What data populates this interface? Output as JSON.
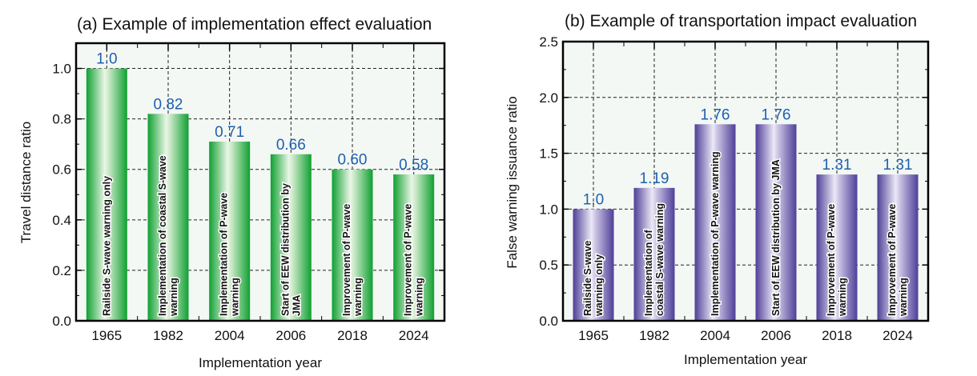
{
  "chart_data": [
    {
      "type": "bar",
      "title": "(a) Example of implementation effect evaluation",
      "xlabel": "Implementation year",
      "ylabel": "Travel distance ratio",
      "categories": [
        "1965",
        "1982",
        "2004",
        "2006",
        "2018",
        "2024"
      ],
      "values": [
        1.0,
        0.82,
        0.71,
        0.66,
        0.6,
        0.58
      ],
      "value_labels": [
        "1.0",
        "0.82",
        "0.71",
        "0.66",
        "0.60",
        "0.58"
      ],
      "bar_labels": [
        [
          "Railside S-wave warning only"
        ],
        [
          "Implementation of coastal S-wave",
          "warning"
        ],
        [
          "Implementation of P-wave",
          "warning"
        ],
        [
          "Start of EEW distribution by",
          "JMA"
        ],
        [
          "Improvement of P-wave",
          "warning"
        ],
        [
          "Improvement of P-wave",
          "warning"
        ]
      ],
      "ylim": [
        0,
        1.1
      ],
      "yticks": [
        0.0,
        0.2,
        0.4,
        0.6,
        0.8,
        1.0
      ],
      "ytick_labels": [
        "0.0",
        "0.2",
        "0.4",
        "0.6",
        "0.8",
        "1.0"
      ],
      "grid": true,
      "bar_color": "#1aa33a",
      "background": "#f3f8f4"
    },
    {
      "type": "bar",
      "title": "(b) Example of transportation impact evaluation",
      "xlabel": "Implementation year",
      "ylabel": "False warning issuance ratio",
      "categories": [
        "1965",
        "1982",
        "2004",
        "2006",
        "2018",
        "2024"
      ],
      "values": [
        1.0,
        1.19,
        1.76,
        1.76,
        1.31,
        1.31
      ],
      "value_labels": [
        "1.0",
        "1.19",
        "1.76",
        "1.76",
        "1.31",
        "1.31"
      ],
      "bar_labels": [
        [
          "Railside S-wave",
          "warning only"
        ],
        [
          "Implementation of",
          "coastal S-wave warning"
        ],
        [
          "Implementation of P-wave warning"
        ],
        [
          "Start of EEW distribution by JMA"
        ],
        [
          "Improvement of P-wave",
          "warning"
        ],
        [
          "Improvement of P-wave",
          "warning"
        ]
      ],
      "ylim": [
        0,
        2.5
      ],
      "yticks": [
        0.0,
        0.5,
        1.0,
        1.5,
        2.0,
        2.5
      ],
      "ytick_labels": [
        "0.0",
        "0.5",
        "1.0",
        "1.5",
        "2.0",
        "2.5"
      ],
      "grid": true,
      "bar_color": "#5b4ba0",
      "background": "#f3f8f4"
    }
  ]
}
